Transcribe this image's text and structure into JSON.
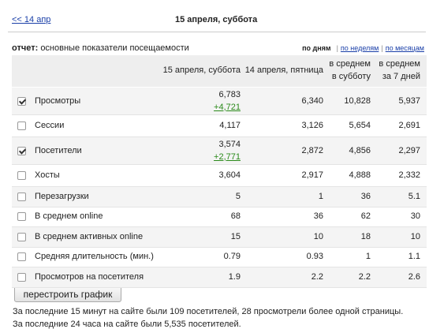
{
  "nav": {
    "prev": "<< 14 апр",
    "date": "15 апреля, суббота"
  },
  "report": {
    "label": "отчет:",
    "title": "основные показатели посещаемости",
    "current_view": "по дням",
    "separator": "|",
    "other_views": [
      "по неделям",
      "по месяцам"
    ]
  },
  "table": {
    "columns": [
      [
        "15 апреля, суббота"
      ],
      [
        "14 апреля, пятница"
      ],
      [
        "в среднем",
        "в субботу"
      ],
      [
        "в среднем",
        "за 7 дней"
      ]
    ],
    "rows": [
      {
        "checked": true,
        "label": "Просмотры",
        "values": [
          "6,783",
          "6,340",
          "10,828",
          "5,937"
        ],
        "delta": "+4,721"
      },
      {
        "checked": false,
        "label": "Сессии",
        "values": [
          "4,117",
          "3,126",
          "5,654",
          "2,691"
        ]
      },
      {
        "checked": true,
        "label": "Посетители",
        "values": [
          "3,574",
          "2,872",
          "4,856",
          "2,297"
        ],
        "delta": "+2,771"
      },
      {
        "checked": false,
        "label": "Хосты",
        "values": [
          "3,604",
          "2,917",
          "4,888",
          "2,332"
        ]
      },
      {
        "checked": false,
        "label": "Перезагрузки",
        "values": [
          "5",
          "1",
          "36",
          "5.1"
        ]
      },
      {
        "checked": false,
        "label": "В среднем online",
        "values": [
          "68",
          "36",
          "62",
          "30"
        ]
      },
      {
        "checked": false,
        "label": "В среднем активных online",
        "values": [
          "15",
          "10",
          "18",
          "10"
        ]
      },
      {
        "checked": false,
        "label": "Средняя длительность (мин.)",
        "values": [
          "0.79",
          "0.93",
          "1",
          "1.1"
        ]
      },
      {
        "checked": false,
        "label": "Просмотров на посетителя",
        "values": [
          "1.9",
          "2.2",
          "2.2",
          "2.6"
        ]
      }
    ]
  },
  "button": "перестроить график",
  "notes": [
    "За последние 15 минут на сайте были 109 посетителей, 28 просмотрели более одной страницы.",
    "За последние 24 часа на сайте были 5,535 посетителей."
  ]
}
